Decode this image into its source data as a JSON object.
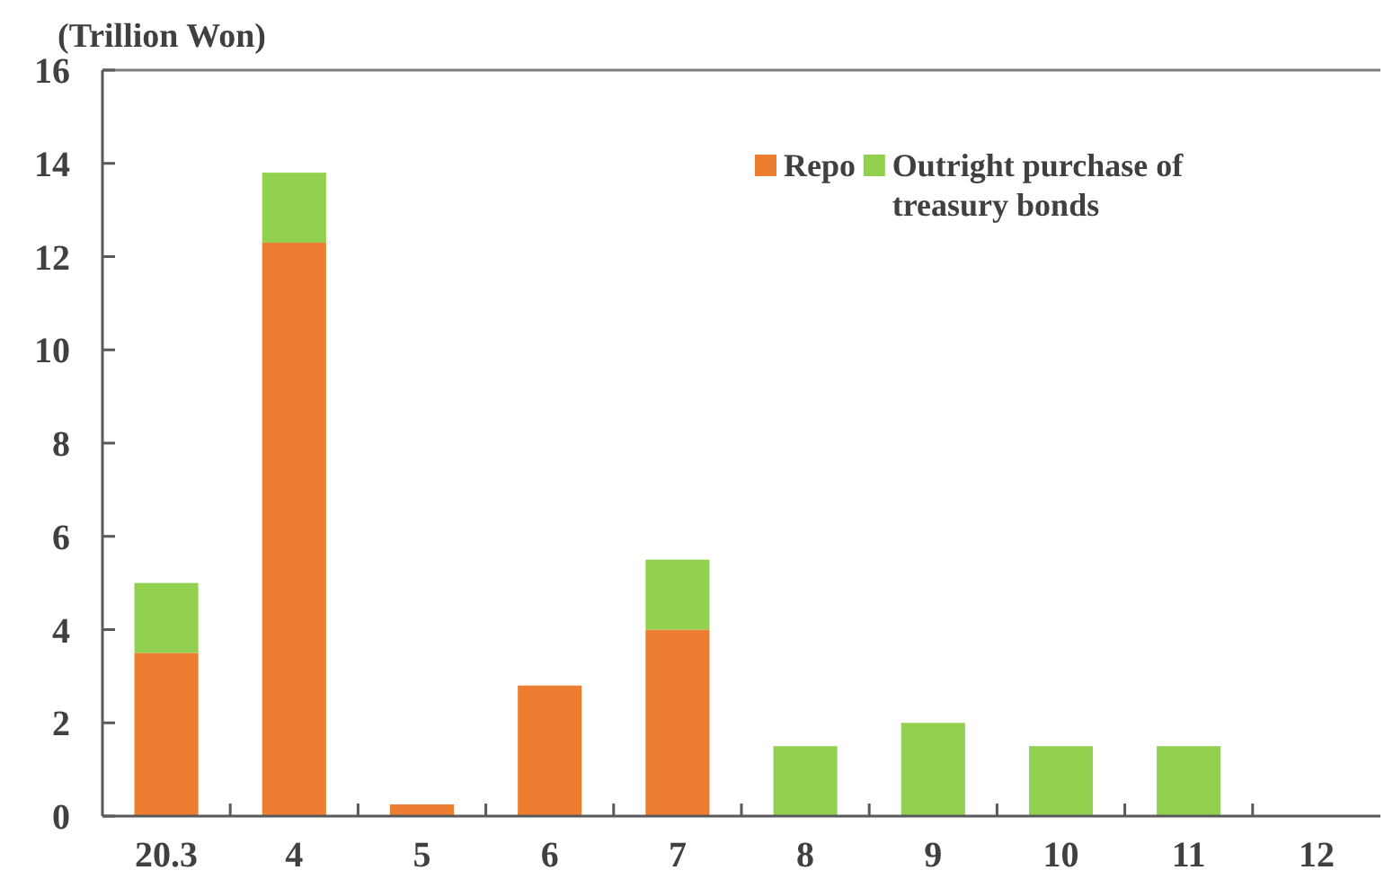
{
  "chart_data": {
    "type": "bar",
    "ylabel": "(Trillion Won)",
    "categories": [
      "20.3",
      "4",
      "5",
      "6",
      "7",
      "8",
      "9",
      "10",
      "11",
      "12"
    ],
    "stacked": true,
    "series": [
      {
        "name": "Repo",
        "color": "#ed7d31",
        "values": [
          3.5,
          12.3,
          0.25,
          2.8,
          4.0,
          null,
          null,
          null,
          null,
          null
        ]
      },
      {
        "name": "Outright purchase of treasury bonds",
        "color": "#92d050",
        "values": [
          1.5,
          1.5,
          null,
          null,
          1.5,
          1.5,
          2.0,
          1.5,
          1.5,
          null
        ]
      }
    ],
    "ylim": [
      0,
      16
    ],
    "yticks": [
      0,
      2,
      4,
      6,
      8,
      10,
      12,
      14,
      16
    ],
    "legend": "top right",
    "grid": false
  }
}
